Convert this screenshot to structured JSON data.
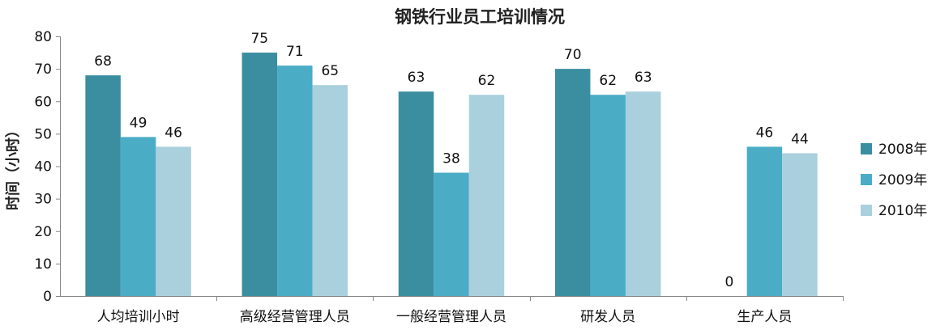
{
  "chart_data": {
    "type": "bar",
    "title": "钢铁行业员工培训情况",
    "ylabel": "时间（小时）",
    "xlabel": "",
    "ylim": [
      0,
      80
    ],
    "yticks": [
      0,
      10,
      20,
      30,
      40,
      50,
      60,
      70,
      80
    ],
    "grid": false,
    "legend_position": "right",
    "categories": [
      "人均培训小时",
      "高级经营管理人员",
      "一般经营管理人员",
      "研发人员",
      "生产人员"
    ],
    "series": [
      {
        "name": "2008年",
        "color": "#3a8ea0",
        "values": [
          68,
          75,
          63,
          70,
          0
        ]
      },
      {
        "name": "2009年",
        "color": "#4bacc6",
        "values": [
          49,
          71,
          38,
          62,
          46
        ]
      },
      {
        "name": "2010年",
        "color": "#a9d0dc",
        "values": [
          46,
          65,
          62,
          63,
          44
        ]
      }
    ]
  }
}
